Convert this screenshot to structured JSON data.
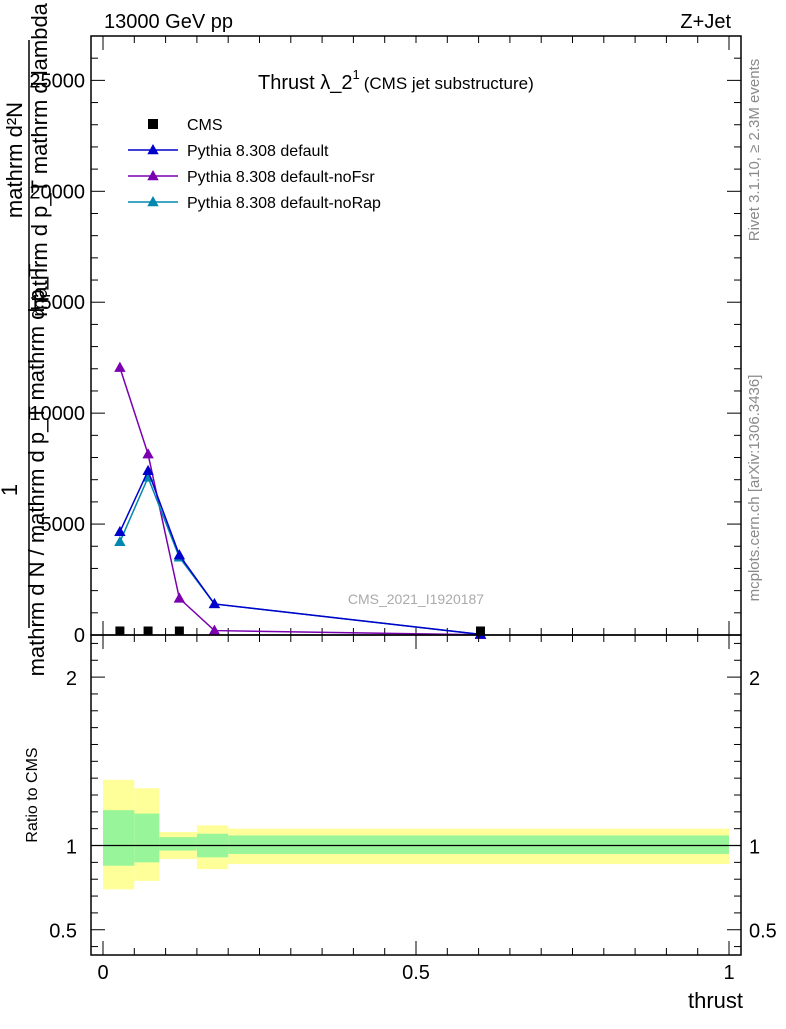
{
  "header": {
    "left": "13000 GeV pp",
    "right": "Z+Jet"
  },
  "side": {
    "rivet": "Rivet 3.1.10, ≥ 2.3M events",
    "mcplots": "mcplots.cern.ch [arXiv:1306.3436]"
  },
  "colors": {
    "cms": "#000000",
    "default": "#0000cc",
    "noFsr": "#7a00b0",
    "noRap": "#0088b0",
    "band_inner": "#99f599",
    "band_outer": "#ffff99"
  },
  "chart_data": [
    {
      "type": "line",
      "title": "Thrust λ_2",
      "title_sup": "1",
      "subtitle": "(CMS jet substructure)",
      "ylabel_numerator": "1",
      "ylabel_lines": [
        "mathrm d²N",
        "mathrm d p_T mathrm d lambda",
        "mathrm d N / mathrm d p_T mathrm d p_T"
      ],
      "watermark": "CMS_2021_I1920187",
      "xlim": [
        0,
        1
      ],
      "ylim": [
        0,
        27000
      ],
      "yticks": [
        {
          "value": 0,
          "label": "0"
        },
        {
          "value": 5000,
          "label": "5000"
        },
        {
          "value": 10000,
          "label": "10000"
        },
        {
          "value": 15000,
          "label": "15000"
        },
        {
          "value": 20000,
          "label": "20000"
        },
        {
          "value": 25000,
          "label": "25000"
        }
      ],
      "legend_position": "top-left",
      "series": [
        {
          "name": "CMS",
          "color_key": "cms",
          "marker": "square",
          "x": [
            0.027,
            0.072,
            0.122,
            0.603
          ],
          "y": [
            30,
            30,
            30,
            10
          ]
        },
        {
          "name": "Pythia 8.308 default",
          "color_key": "default",
          "marker": "triangle",
          "x": [
            0.027,
            0.072,
            0.122,
            0.178,
            0.603
          ],
          "y": [
            4650,
            7400,
            3600,
            1400,
            30
          ]
        },
        {
          "name": "Pythia 8.308 default-noFsr",
          "color_key": "noFsr",
          "marker": "triangle",
          "x": [
            0.027,
            0.072,
            0.122,
            0.178,
            0.603
          ],
          "y": [
            12050,
            8150,
            1650,
            200,
            10
          ]
        },
        {
          "name": "Pythia 8.308 default-noRap",
          "color_key": "noRap",
          "marker": "triangle",
          "x": [
            0.027,
            0.072,
            0.122,
            0.178,
            0.603
          ],
          "y": [
            4200,
            7100,
            3500,
            1400,
            30
          ]
        }
      ]
    },
    {
      "type": "area",
      "ylabel": "Ratio to CMS",
      "xlabel": "thrust",
      "xlim": [
        0,
        1
      ],
      "ylim": [
        0.35,
        2.25
      ],
      "xticks": [
        {
          "value": 0,
          "label": "0"
        },
        {
          "value": 0.5,
          "label": "0.5"
        },
        {
          "value": 1,
          "label": "1"
        }
      ],
      "yticks": [
        {
          "value": 0.5,
          "label": "0.5"
        },
        {
          "value": 1,
          "label": "1"
        },
        {
          "value": 2,
          "label": "2"
        }
      ],
      "bins": [
        {
          "x0": 0.0,
          "x1": 0.05,
          "inner": [
            0.88,
            1.21
          ],
          "outer": [
            0.74,
            1.39
          ]
        },
        {
          "x0": 0.05,
          "x1": 0.09,
          "inner": [
            0.9,
            1.19
          ],
          "outer": [
            0.79,
            1.34
          ]
        },
        {
          "x0": 0.09,
          "x1": 0.15,
          "inner": [
            0.97,
            1.05
          ],
          "outer": [
            0.92,
            1.08
          ]
        },
        {
          "x0": 0.15,
          "x1": 0.2,
          "inner": [
            0.93,
            1.07
          ],
          "outer": [
            0.86,
            1.12
          ]
        },
        {
          "x0": 0.2,
          "x1": 1.0,
          "inner": [
            0.95,
            1.06
          ],
          "outer": [
            0.89,
            1.1
          ]
        }
      ],
      "reference_line": 1
    }
  ]
}
